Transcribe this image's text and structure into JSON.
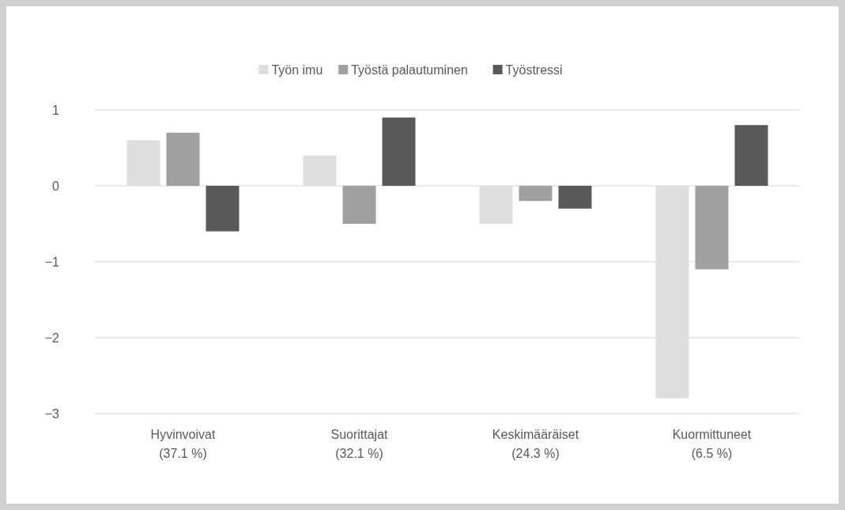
{
  "chart_data": {
    "type": "bar",
    "categories": [
      "Hyvinvoivat\n(37.1 %)",
      "Suorittajat\n(32.1 %)",
      "Keskimääräiset\n(24.3 %)",
      "Kuormittuneet\n(6.5 %)"
    ],
    "series": [
      {
        "name": "Työn imu",
        "color": "#dedede",
        "values": [
          0.6,
          0.4,
          -0.5,
          -2.8
        ]
      },
      {
        "name": "Työstä palautuminen",
        "color": "#a0a0a0",
        "values": [
          0.7,
          -0.5,
          -0.2,
          -1.1
        ]
      },
      {
        "name": "Työstressi",
        "color": "#595959",
        "values": [
          -0.6,
          0.9,
          -0.3,
          0.8
        ]
      }
    ],
    "ylim": [
      -3,
      1
    ],
    "yticks": [
      {
        "value": -3,
        "label": "−3"
      },
      {
        "value": -2,
        "label": "−2"
      },
      {
        "value": -1,
        "label": "−1"
      },
      0,
      1
    ],
    "grid": "y",
    "legend": "top"
  }
}
